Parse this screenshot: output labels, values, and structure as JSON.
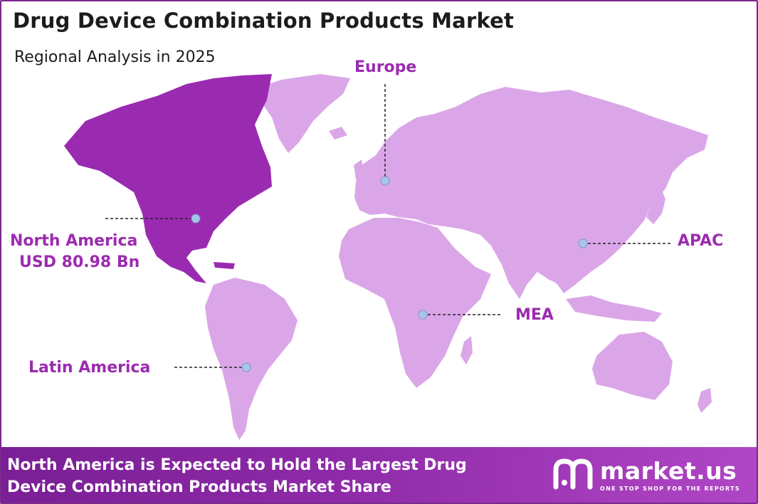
{
  "header": {
    "title": "Drug Device Combination Products Market",
    "subtitle": "Regional Analysis in 2025"
  },
  "regions": {
    "north_america": {
      "name": "North America",
      "value": "USD 80.98 Bn"
    },
    "europe": {
      "name": "Europe"
    },
    "apac": {
      "name": "APAC"
    },
    "mea": {
      "name": "MEA"
    },
    "latin_america": {
      "name": "Latin America"
    }
  },
  "footer": {
    "line1": "North America is Expected to Hold the Largest Drug",
    "line2": "Device Combination Products Market Share"
  },
  "brand": {
    "name": "market.us",
    "tagline": "ONE STOP SHOP FOR THE REPORTS"
  },
  "colors": {
    "highlight_region": "#9a2bb1",
    "other_regions": "#dba6e8",
    "label": "#9c2bb0",
    "marker": "#a9c4ec",
    "footer_bg": "#8e2aa8"
  }
}
